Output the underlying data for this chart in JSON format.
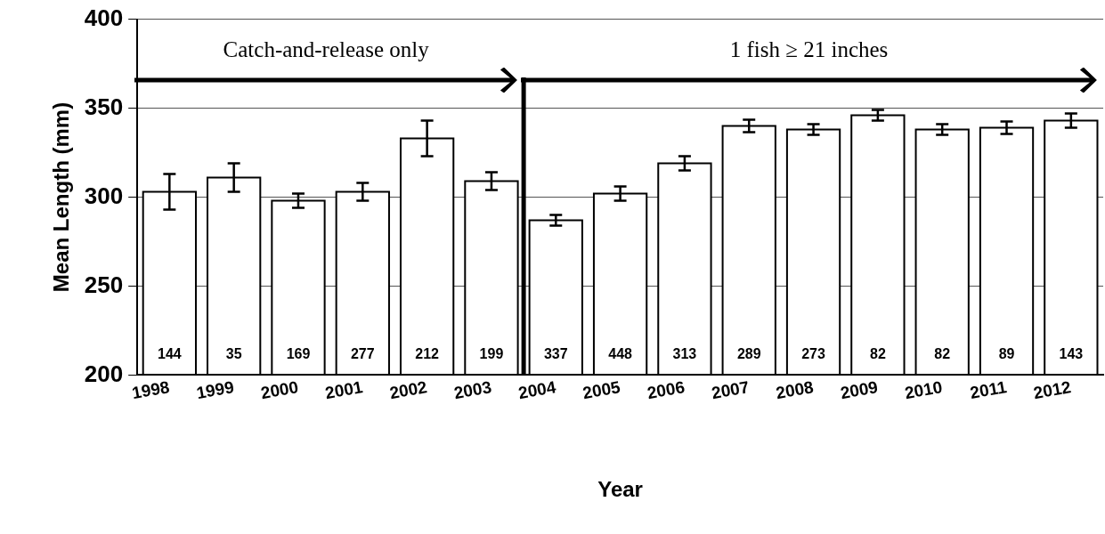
{
  "chart_data": {
    "type": "bar",
    "xlabel": "Year",
    "ylabel": "Mean Length (mm)",
    "categories": [
      "1998",
      "1999",
      "2000",
      "2001",
      "2002",
      "2003",
      "2004",
      "2005",
      "2006",
      "2007",
      "2008",
      "2009",
      "2010",
      "2011",
      "2012"
    ],
    "series": [
      {
        "color": "#ffffff",
        "values": [
          303,
          311,
          298,
          303,
          333,
          309,
          287,
          302,
          319,
          340,
          338,
          346,
          338,
          339,
          343
        ],
        "errors": [
          10,
          8,
          4,
          5,
          10,
          5,
          3,
          4,
          4,
          3.5,
          3,
          3,
          3,
          3.5,
          4
        ]
      }
    ],
    "ylim": [
      200,
      400
    ],
    "yticks": [
      200,
      250,
      300,
      350,
      400
    ],
    "grid": "y",
    "legend": false,
    "ref_lines": [
      {
        "axis": "x",
        "value": "2004",
        "color": "#000000"
      }
    ],
    "annotations": [
      "Catch-and-release only",
      "1 fish ≥ 21 inches",
      "144",
      "35",
      "169",
      "277",
      "212",
      "199",
      "337",
      "448",
      "313",
      "289",
      "273",
      "82",
      "82",
      "89",
      "143"
    ]
  }
}
